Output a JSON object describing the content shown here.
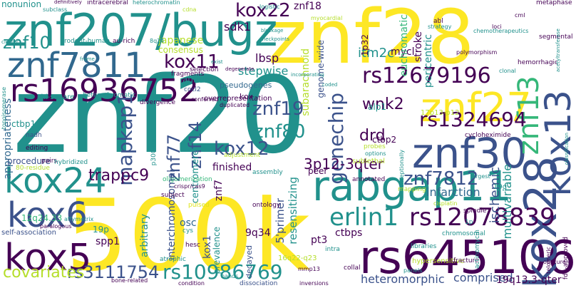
{
  "palette": {
    "dark_purple": "#440154",
    "indigo": "#3b528b",
    "slate_blue": "#31688e",
    "teal": "#21918c",
    "teal_green": "#1f9e89",
    "green": "#35b779",
    "lime": "#6ece58",
    "yellow_green": "#b5de2b",
    "yellow": "#dde318",
    "bright_yellow": "#fde725"
  },
  "words": [
    {
      "text": "znf20",
      "color": "teal",
      "rotate": 0
    },
    {
      "text": "500k",
      "color": "bright_yellow",
      "rotate": 0
    },
    {
      "text": "znf28",
      "color": "bright_yellow",
      "rotate": 0
    },
    {
      "text": "znf207/bugz",
      "color": "teal",
      "rotate": 0
    },
    {
      "text": "znf7811",
      "color": "slate_blue",
      "rotate": 0
    },
    {
      "text": "rs645106",
      "color": "dark_purple",
      "rotate": 0
    },
    {
      "text": "rabgap11",
      "color": "teal",
      "rotate": 0
    },
    {
      "text": "kox28",
      "color": "indigo",
      "rotate": -90
    },
    {
      "text": "rs16936752",
      "color": "dark_purple",
      "rotate": 0
    },
    {
      "text": "znf30",
      "color": "indigo",
      "rotate": 0
    },
    {
      "text": "znf27",
      "color": "bright_yellow",
      "rotate": 0
    },
    {
      "text": "kox5",
      "color": "dark_purple",
      "rotate": 0
    },
    {
      "text": "kox24",
      "color": "teal",
      "rotate": 0
    },
    {
      "text": "kox6",
      "color": "indigo",
      "rotate": 0
    },
    {
      "text": "kox13",
      "color": "indigo",
      "rotate": -90
    },
    {
      "text": "znf13",
      "color": "green",
      "rotate": -90
    },
    {
      "text": "rs12078839",
      "color": "dark_purple",
      "rotate": 0
    },
    {
      "text": "erlin1",
      "color": "teal",
      "rotate": 0
    },
    {
      "text": "rs12679196",
      "color": "dark_purple",
      "rotate": 0
    },
    {
      "text": "rs1324694",
      "color": "dark_purple",
      "rotate": 0
    },
    {
      "text": "rs10986769",
      "color": "teal",
      "rotate": 0
    },
    {
      "text": "rs3111754",
      "color": "indigo",
      "rotate": 0
    },
    {
      "text": "kox11",
      "color": "dark_purple",
      "rotate": 0
    },
    {
      "text": "kox22",
      "color": "dark_purple",
      "rotate": 0
    },
    {
      "text": "genechip",
      "color": "indigo",
      "rotate": -90
    },
    {
      "text": "mapkap1",
      "color": "indigo",
      "rotate": -90
    },
    {
      "text": "znf7812",
      "color": "indigo",
      "rotate": 0
    },
    {
      "text": "znf80",
      "color": "teal",
      "rotate": 0
    },
    {
      "text": "kox12",
      "color": "indigo",
      "rotate": 0
    },
    {
      "text": "znf19",
      "color": "indigo",
      "rotate": 0
    },
    {
      "text": "znf10",
      "color": "teal",
      "rotate": 0
    },
    {
      "text": "covariates",
      "color": "yellow_green",
      "rotate": 0
    },
    {
      "text": "znf77",
      "color": "indigo",
      "rotate": -90
    },
    {
      "text": "znf14",
      "color": "indigo",
      "rotate": -90
    },
    {
      "text": "wnk2",
      "color": "dark_purple",
      "rotate": 0
    },
    {
      "text": "trappc9",
      "color": "dark_purple",
      "rotate": 0
    },
    {
      "text": "3p12-3qter",
      "color": "dark_purple",
      "rotate": 0
    },
    {
      "text": "drd",
      "color": "dark_purple",
      "rotate": 0
    },
    {
      "text": "itm2c",
      "color": "teal",
      "rotate": 0
    },
    {
      "text": "infarction",
      "color": "slate_blue",
      "rotate": 0
    },
    {
      "text": "ischemic",
      "color": "indigo",
      "rotate": -90
    },
    {
      "text": "multivariable",
      "color": "teal",
      "rotate": -90
    },
    {
      "text": "heteromorphic",
      "color": "indigo",
      "rotate": 0
    },
    {
      "text": "comprised",
      "color": "indigo",
      "rotate": 0
    },
    {
      "text": "19q13.3-qter",
      "color": "dark_purple",
      "rotate": 0
    },
    {
      "text": "ctbps",
      "color": "dark_purple",
      "rotate": 0
    },
    {
      "text": "resensitizing",
      "color": "teal",
      "rotate": -90
    },
    {
      "text": "5'primer",
      "color": "indigo",
      "rotate": -90
    },
    {
      "text": "interchromosomal",
      "color": "indigo",
      "rotate": -90
    },
    {
      "text": "arbitrary",
      "color": "teal",
      "rotate": -90
    },
    {
      "text": "kox1",
      "color": "indigo",
      "rotate": -90
    },
    {
      "text": "prevalence",
      "color": "teal",
      "rotate": -90
    },
    {
      "text": "9q34",
      "color": "dark_purple",
      "rotate": 0
    },
    {
      "text": "decayed",
      "color": "indigo",
      "rotate": -90
    },
    {
      "text": "pt3",
      "color": "dark_purple",
      "rotate": 0
    },
    {
      "text": "finished",
      "color": "dark_purple",
      "rotate": 0
    },
    {
      "text": "centromere",
      "color": "teal",
      "rotate": -90
    },
    {
      "text": "znf7",
      "color": "dark_purple",
      "rotate": -90
    },
    {
      "text": "stepwise",
      "color": "teal",
      "rotate": 0
    },
    {
      "text": "lbsp",
      "color": "dark_purple",
      "rotate": 0
    },
    {
      "text": "sdk1",
      "color": "dark_purple",
      "rotate": 0
    },
    {
      "text": "znf18",
      "color": "dark_purple",
      "rotate": 0
    },
    {
      "text": "mycl",
      "color": "dark_purple",
      "rotate": 0
    },
    {
      "text": "1p32",
      "color": "dark_purple",
      "rotate": -90
    },
    {
      "text": "stroke",
      "color": "dark_purple",
      "rotate": -90
    },
    {
      "text": "pericentric",
      "color": "teal",
      "rotate": -90
    },
    {
      "text": "euchromatic",
      "color": "green",
      "rotate": -90
    },
    {
      "text": "subarachnoid",
      "color": "yellow_green",
      "rotate": -90
    },
    {
      "text": "genome-wide",
      "color": "indigo",
      "rotate": -90
    },
    {
      "text": "procedure",
      "color": "indigo",
      "rotate": 0
    },
    {
      "text": "appropriateness",
      "color": "slate_blue",
      "rotate": -90
    },
    {
      "text": "spp1",
      "color": "dark_purple",
      "rotate": 0
    },
    {
      "text": "19p",
      "color": "teal",
      "rotate": 0
    },
    {
      "text": "osc",
      "color": "slate_blue",
      "rotate": 0
    },
    {
      "text": "japanese",
      "color": "yellow_green",
      "rotate": 0
    },
    {
      "text": "consensus",
      "color": "yellow_green",
      "rotate": 0
    },
    {
      "text": "auuua",
      "color": "teal",
      "rotate": 0
    },
    {
      "text": "pseudogenes",
      "color": "slate_blue",
      "rotate": 0
    },
    {
      "text": "ctbp2",
      "color": "dark_purple",
      "rotate": 0
    },
    {
      "text": "alp1",
      "color": "teal",
      "rotate": 0
    },
    {
      "text": "17p13-p12",
      "color": "yellow_green",
      "rotate": 0
    },
    {
      "text": "peer",
      "color": "dark_purple",
      "rotate": 0
    },
    {
      "text": "sublethal",
      "color": "yellow_green",
      "rotate": 0
    },
    {
      "text": "ctbp1",
      "color": "teal",
      "rotate": 0
    },
    {
      "text": "nonunion",
      "color": "teal",
      "rotate": 0
    },
    {
      "text": "rodent-human",
      "color": "teal",
      "rotate": 0
    },
    {
      "text": "au-rich",
      "color": "dark_purple",
      "rotate": 0
    },
    {
      "text": "8q24",
      "color": "teal",
      "rotate": 0
    },
    {
      "text": "fragments",
      "color": "dark_purple",
      "rotate": 0
    },
    {
      "text": "selection",
      "color": "dark_purple",
      "rotate": 0
    },
    {
      "text": "chi-square",
      "color": "teal",
      "rotate": 0
    },
    {
      "text": "heterochromatic",
      "color": "teal",
      "rotate": 0
    },
    {
      "text": "nadh",
      "color": "indigo",
      "rotate": 0
    },
    {
      "text": "editing",
      "color": "dark_purple",
      "rotate": 0
    },
    {
      "text": "pairs",
      "color": "dark_purple",
      "rotate": 0
    },
    {
      "text": "hybridized",
      "color": "teal",
      "rotate": 0
    },
    {
      "text": "80-residue",
      "color": "yellow_green",
      "rotate": 0
    },
    {
      "text": "12q24.33",
      "color": "green",
      "rotate": 0
    },
    {
      "text": "self-association",
      "color": "indigo",
      "rotate": 0
    },
    {
      "text": "affymetrix",
      "color": "teal",
      "rotate": 0
    },
    {
      "text": "paralogous",
      "color": "dark_purple",
      "rotate": 0
    },
    {
      "text": "bone-related",
      "color": "dark_purple",
      "rotate": 0
    },
    {
      "text": "hesc",
      "color": "dark_purple",
      "rotate": 0
    },
    {
      "text": "atrophic",
      "color": "teal",
      "rotate": 0
    },
    {
      "text": "subject",
      "color": "dark_purple",
      "rotate": 0
    },
    {
      "text": "pulsed",
      "color": "yellow",
      "rotate": 0
    },
    {
      "text": "cys",
      "color": "teal",
      "rotate": 0
    },
    {
      "text": "ontology",
      "color": "dark_purple",
      "rotate": 0
    },
    {
      "text": "adjustment",
      "color": "yellow_green",
      "rotate": 0
    },
    {
      "text": "assembly",
      "color": "teal",
      "rotate": 0
    },
    {
      "text": "annotated",
      "color": "dark_purple",
      "rotate": 0
    },
    {
      "text": "mapping",
      "color": "yellow_green",
      "rotate": 0
    },
    {
      "text": "libraries",
      "color": "teal",
      "rotate": 0
    },
    {
      "text": "chromosomal",
      "color": "teal",
      "rotate": 0
    },
    {
      "text": "hypersensitive",
      "color": "yellow_green",
      "rotate": 0
    },
    {
      "text": "fracture",
      "color": "dark_purple",
      "rotate": 0
    },
    {
      "text": "collal",
      "color": "dark_purple",
      "rotate": 0
    },
    {
      "text": "16q22-q23",
      "color": "yellow_green",
      "rotate": 0
    },
    {
      "text": "intra",
      "color": "teal",
      "rotate": 0
    },
    {
      "text": "mmp13",
      "color": "dark_purple",
      "rotate": 0
    },
    {
      "text": "dissociation",
      "color": "indigo",
      "rotate": 0
    },
    {
      "text": "inversions",
      "color": "dark_purple",
      "rotate": 0
    },
    {
      "text": "bands",
      "color": "teal",
      "rotate": 0
    },
    {
      "text": "condition",
      "color": "dark_purple",
      "rotate": 0
    },
    {
      "text": "overrepresentation",
      "color": "dark_purple",
      "rotate": 0
    },
    {
      "text": "duplicated",
      "color": "dark_purple",
      "rotate": 0
    },
    {
      "text": "conferred",
      "color": "dark_purple",
      "rotate": 0
    },
    {
      "text": "p300-runx2",
      "color": "teal",
      "rotate": -90
    },
    {
      "text": "oligomerization",
      "color": "green",
      "rotate": 0
    },
    {
      "text": "crispr/cas9",
      "color": "dark_purple",
      "rotate": 0
    },
    {
      "text": "divergence",
      "color": "dark_purple",
      "rotate": 0
    },
    {
      "text": "cocl2",
      "color": "indigo",
      "rotate": 0
    },
    {
      "text": "kox",
      "color": "dark_purple",
      "rotate": 0
    },
    {
      "text": "probes",
      "color": "yellow_green",
      "rotate": 0
    },
    {
      "text": "options",
      "color": "teal",
      "rotate": 0
    },
    {
      "text": "cycloheximide",
      "color": "dark_purple",
      "rotate": 0
    },
    {
      "text": "19q",
      "color": "teal",
      "rotate": 0
    },
    {
      "text": "spindle",
      "color": "dark_purple",
      "rotate": 0
    },
    {
      "text": "cisplatin",
      "color": "yellow_green",
      "rotate": 0
    },
    {
      "text": "actinomycin",
      "color": "teal",
      "rotate": -90
    },
    {
      "text": "clonal",
      "color": "teal",
      "rotate": 0
    },
    {
      "text": "hemorrhagic",
      "color": "dark_purple",
      "rotate": 0
    },
    {
      "text": "segmental",
      "color": "dark_purple",
      "rotate": 0
    },
    {
      "text": "metaphase",
      "color": "dark_purple",
      "rotate": 0
    },
    {
      "text": "fda-approved",
      "color": "dark_purple",
      "rotate": -90
    },
    {
      "text": "telomeric",
      "color": "dark_purple",
      "rotate": -90
    },
    {
      "text": "obscure",
      "color": "dark_purple",
      "rotate": 0
    },
    {
      "text": "panels",
      "color": "teal",
      "rotate": 0
    },
    {
      "text": "1p",
      "color": "teal",
      "rotate": 0
    },
    {
      "text": "intracerebral",
      "color": "dark_purple",
      "rotate": 0
    },
    {
      "text": "heterochromatin",
      "color": "teal",
      "rotate": 0
    },
    {
      "text": "cdna",
      "color": "yellow_green",
      "rotate": 0
    },
    {
      "text": "logistic",
      "color": "teal",
      "rotate": 0
    },
    {
      "text": "myocardial",
      "color": "yellow_green",
      "rotate": 0
    },
    {
      "text": "definitively",
      "color": "dark_purple",
      "rotate": 0
    },
    {
      "text": "subclass",
      "color": "teal",
      "rotate": 0
    },
    {
      "text": "cluster",
      "color": "teal",
      "rotate": 0
    },
    {
      "text": "frame",
      "color": "teal",
      "rotate": 0
    },
    {
      "text": "blockage",
      "color": "teal",
      "rotate": 0
    },
    {
      "text": "checkpoints",
      "color": "teal",
      "rotate": 0
    },
    {
      "text": "exist",
      "color": "teal",
      "rotate": 0
    },
    {
      "text": "degenerate",
      "color": "dark_purple",
      "rotate": 0
    },
    {
      "text": "incorporating",
      "color": "teal",
      "rotate": 0
    },
    {
      "text": "coded",
      "color": "teal",
      "rotate": 0
    },
    {
      "text": "polymorphism",
      "color": "dark_purple",
      "rotate": 0
    },
    {
      "text": "chemotherapeutics",
      "color": "teal",
      "rotate": 0
    },
    {
      "text": "strategy",
      "color": "teal",
      "rotate": 0
    },
    {
      "text": "abl",
      "color": "dark_purple",
      "rotate": 0
    },
    {
      "text": "cml",
      "color": "dark_purple",
      "rotate": 0
    },
    {
      "text": "loci",
      "color": "dark_purple",
      "rotate": 0
    },
    {
      "text": "topoisomerase",
      "color": "teal",
      "rotate": -90
    },
    {
      "text": "exceptionally",
      "color": "teal",
      "rotate": -90
    },
    {
      "text": "largest",
      "color": "teal",
      "rotate": 0
    },
    {
      "text": "acetyltransferase",
      "color": "teal",
      "rotate": -90
    },
    {
      "text": "classification",
      "color": "teal",
      "rotate": -90
    }
  ]
}
